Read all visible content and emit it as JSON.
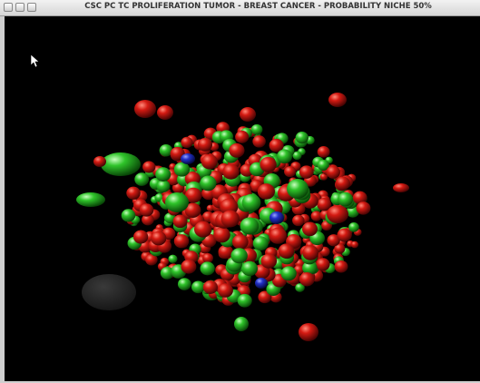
{
  "window": {
    "title": "CSC PC TC PROLIFERATION TUMOR - BREAST CANCER -  PROBABILITY NICHE 50%"
  }
}
